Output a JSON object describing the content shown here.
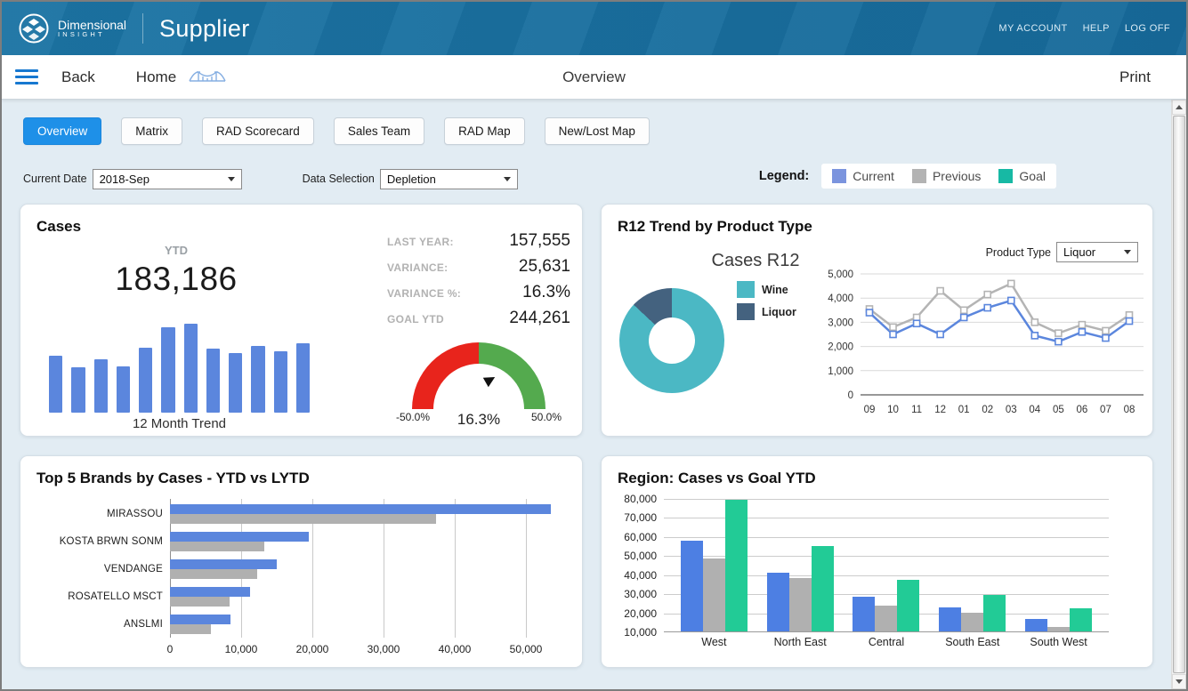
{
  "header": {
    "brand": {
      "line1": "Dimensional",
      "line2": "INSIGHT"
    },
    "app_title": "Supplier",
    "links": [
      "MY ACCOUNT",
      "HELP",
      "LOG OFF"
    ]
  },
  "navbar": {
    "back": "Back",
    "home": "Home",
    "center_title": "Overview",
    "print": "Print"
  },
  "icons": {
    "logo": "dimensional-insight-logo",
    "menu": "hamburger-menu-icon",
    "bridge": "bridge-icon",
    "dropdown": "dropdown-arrow-icon",
    "scroll_up": "scroll-up-icon",
    "scroll_down": "scroll-down-icon",
    "needle": "gauge-needle-icon"
  },
  "tabs": [
    {
      "label": "Overview",
      "active": true
    },
    {
      "label": "Matrix",
      "active": false
    },
    {
      "label": "RAD Scorecard",
      "active": false
    },
    {
      "label": "Sales Team",
      "active": false
    },
    {
      "label": "RAD Map",
      "active": false
    },
    {
      "label": "New/Lost Map",
      "active": false
    }
  ],
  "filters": {
    "current_date_label": "Current Date",
    "current_date_value": "2018-Sep",
    "data_selection_label": "Data Selection",
    "data_selection_value": "Depletion"
  },
  "legend": {
    "title": "Legend:",
    "items": [
      {
        "label": "Current",
        "color": "#7b94de"
      },
      {
        "label": "Previous",
        "color": "#b3b3b3"
      },
      {
        "label": "Goal",
        "color": "#17b9a4"
      }
    ]
  },
  "cases_panel": {
    "title": "Cases",
    "ytd_label": "YTD",
    "ytd_value": "183,186",
    "stats": [
      {
        "label": "LAST YEAR:",
        "value": "157,555"
      },
      {
        "label": "VARIANCE:",
        "value": "25,631"
      },
      {
        "label": "VARIANCE %:",
        "value": "16.3%"
      },
      {
        "label": "GOAL YTD",
        "value": "244,261"
      }
    ],
    "trend_caption": "12 Month Trend",
    "gauge": {
      "min": -50,
      "max": 50,
      "value": 16.3,
      "min_label": "-50.0%",
      "value_label": "16.3%",
      "max_label": "50.0%",
      "red_color": "#e8241c",
      "green_color": "#54aa4e"
    }
  },
  "r12_panel": {
    "title": "R12 Trend by Product Type",
    "product_type_label": "Product Type",
    "product_type_value": "Liquor",
    "subtitle": "Cases R12"
  },
  "top5_panel": {
    "title": "Top 5 Brands by Cases - YTD vs LYTD"
  },
  "region_panel": {
    "title": "Region: Cases vs Goal YTD"
  },
  "chart_data": [
    {
      "name": "12_month_trend",
      "type": "bar",
      "title": "12 Month Trend",
      "color": "#5b86dd",
      "note": "no axis values shown; relative bar heights in % of max",
      "relative_values": [
        64,
        51,
        60,
        52,
        73,
        96,
        100,
        72,
        67,
        75,
        69,
        78
      ]
    },
    {
      "name": "cases_r12_donut",
      "type": "pie",
      "title": "Cases R12",
      "categories": [
        "Wine",
        "Liquor"
      ],
      "values": [
        87,
        13
      ],
      "colors": [
        "#4bb8c4",
        "#44627f"
      ]
    },
    {
      "name": "cases_r12_line",
      "type": "line",
      "title": "Cases R12",
      "x": [
        "09",
        "10",
        "11",
        "12",
        "01",
        "02",
        "03",
        "04",
        "05",
        "06",
        "07",
        "08"
      ],
      "series": [
        {
          "name": "Previous",
          "color": "#b4b4b4",
          "values": [
            3550,
            2800,
            3200,
            4300,
            3500,
            4150,
            4600,
            3000,
            2550,
            2900,
            2650,
            3300
          ]
        },
        {
          "name": "Current",
          "color": "#5b86dd",
          "values": [
            3400,
            2500,
            2950,
            2500,
            3200,
            3600,
            3900,
            2450,
            2200,
            2600,
            2350,
            3050
          ]
        }
      ],
      "ylim": [
        0,
        5000
      ],
      "yticks": [
        "0",
        "1,000",
        "2,000",
        "3,000",
        "4,000",
        "5,000"
      ],
      "grid": true
    },
    {
      "name": "top5_brands",
      "type": "bar-horizontal",
      "title": "Top 5 Brands by Cases - YTD vs LYTD",
      "categories": [
        "MIRASSOU",
        "KOSTA BRWN SONM",
        "VENDANGE",
        "ROSATELLO MSCT",
        "ANSLMI"
      ],
      "series": [
        {
          "name": "YTD",
          "color": "#5b86dd",
          "values": [
            53500,
            19500,
            15000,
            11300,
            8500
          ]
        },
        {
          "name": "LYTD",
          "color": "#b0b0b0",
          "values": [
            37400,
            13200,
            12200,
            8400,
            5800
          ]
        }
      ],
      "xlim": [
        0,
        55000
      ],
      "xticks": [
        0,
        10000,
        20000,
        30000,
        40000,
        50000
      ],
      "xtick_labels": [
        "0",
        "10,000",
        "20,000",
        "30,000",
        "40,000",
        "50,000"
      ],
      "grid": true
    },
    {
      "name": "region_cases_vs_goal",
      "type": "bar",
      "title": "Region: Cases vs Goal YTD",
      "categories": [
        "West",
        "North East",
        "Central",
        "South East",
        "South West"
      ],
      "series": [
        {
          "name": "Current",
          "color": "#4d7fe3",
          "values": [
            57500,
            41000,
            28000,
            22500,
            16500
          ]
        },
        {
          "name": "Previous",
          "color": "#b0b0b0",
          "values": [
            48500,
            38000,
            23500,
            20000,
            12500
          ]
        },
        {
          "name": "Goal",
          "color": "#22cb96",
          "values": [
            79000,
            55000,
            37000,
            29000,
            22000
          ]
        }
      ],
      "ylim": [
        10000,
        80000
      ],
      "ytick_labels": [
        "10,000",
        "20,000",
        "30,000",
        "40,000",
        "50,000",
        "60,000",
        "70,000",
        "80,000"
      ],
      "grid": true
    }
  ]
}
